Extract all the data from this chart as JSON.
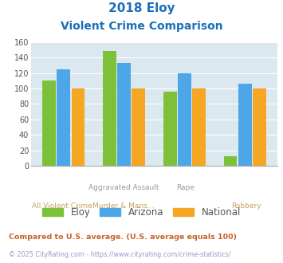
{
  "title_line1": "2018 Eloy",
  "title_line2": "Violent Crime Comparison",
  "cat_top": [
    "",
    "Aggravated Assault",
    "Rape",
    ""
  ],
  "cat_bot": [
    "All Violent Crime",
    "Murder & Mans...",
    "",
    "Robbery"
  ],
  "eloy": [
    110,
    148,
    96,
    12
  ],
  "arizona": [
    125,
    133,
    120,
    106
  ],
  "national": [
    100,
    100,
    100,
    100
  ],
  "eloy_color": "#7dc13a",
  "arizona_color": "#4da6e8",
  "national_color": "#f5a623",
  "bg_color": "#dce8ef",
  "ylim": [
    0,
    160
  ],
  "yticks": [
    0,
    20,
    40,
    60,
    80,
    100,
    120,
    140,
    160
  ],
  "title_color": "#1a6fba",
  "xlabel_top_color": "#999999",
  "xlabel_bot_color": "#c8a060",
  "legend_labels": [
    "Eloy",
    "Arizona",
    "National"
  ],
  "footnote1": "Compared to U.S. average. (U.S. average equals 100)",
  "footnote2": "© 2025 CityRating.com - https://www.cityrating.com/crime-statistics/",
  "footnote1_color": "#c86428",
  "footnote2_color": "#9999cc"
}
